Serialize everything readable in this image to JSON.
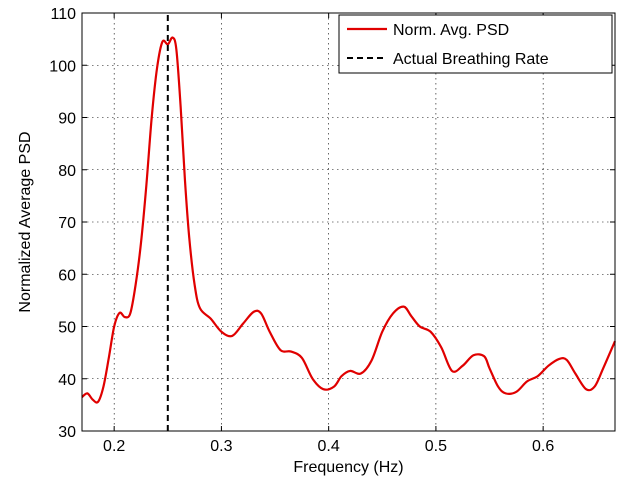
{
  "chart_data": {
    "type": "line",
    "title": "",
    "xlabel": "Frequency (Hz)",
    "ylabel": "Normalized Average PSD",
    "xlim": [
      0.17,
      0.667
    ],
    "ylim": [
      30,
      110
    ],
    "grid": true,
    "legend_position": "top-right",
    "xticks": [
      0.2,
      0.3,
      0.4,
      0.5,
      0.6
    ],
    "xtick_labels": [
      "0.2",
      "0.3",
      "0.4",
      "0.5",
      "0.6"
    ],
    "yticks": [
      30,
      40,
      50,
      60,
      70,
      80,
      90,
      100,
      110
    ],
    "ytick_labels": [
      "30",
      "40",
      "50",
      "60",
      "70",
      "80",
      "90",
      "100",
      "110"
    ],
    "series": [
      {
        "name": "Norm. Avg. PSD",
        "color": "#e00000",
        "style": "solid",
        "x": [
          0.17,
          0.175,
          0.18,
          0.185,
          0.19,
          0.195,
          0.2,
          0.205,
          0.21,
          0.215,
          0.22,
          0.225,
          0.23,
          0.235,
          0.24,
          0.245,
          0.25,
          0.2545,
          0.258,
          0.262,
          0.266,
          0.27,
          0.275,
          0.28,
          0.29,
          0.3,
          0.31,
          0.32,
          0.33,
          0.337,
          0.345,
          0.355,
          0.365,
          0.375,
          0.385,
          0.395,
          0.405,
          0.412,
          0.42,
          0.43,
          0.44,
          0.45,
          0.46,
          0.47,
          0.477,
          0.485,
          0.495,
          0.505,
          0.515,
          0.525,
          0.535,
          0.545,
          0.55,
          0.558,
          0.565,
          0.575,
          0.585,
          0.595,
          0.605,
          0.615,
          0.622,
          0.63,
          0.64,
          0.648,
          0.656,
          0.667
        ],
        "y": [
          36.5,
          37.2,
          36.0,
          35.6,
          38.5,
          44.0,
          50.0,
          52.6,
          51.8,
          52.5,
          58.0,
          66.0,
          77.0,
          90.0,
          99.5,
          104.5,
          104.0,
          105.3,
          103.0,
          92.0,
          78.0,
          67.0,
          58.0,
          53.5,
          51.5,
          49.0,
          48.2,
          50.5,
          52.8,
          52.5,
          49.0,
          45.5,
          45.2,
          44.0,
          40.0,
          38.0,
          38.5,
          40.5,
          41.5,
          41.0,
          43.5,
          49.0,
          52.5,
          53.8,
          52.0,
          50.0,
          49.0,
          46.0,
          41.5,
          42.5,
          44.5,
          44.3,
          42.0,
          38.5,
          37.2,
          37.5,
          39.5,
          40.5,
          42.5,
          43.8,
          43.6,
          41.0,
          38.0,
          38.5,
          42.0,
          47.2
        ]
      },
      {
        "name": "Actual Breathing Rate",
        "color": "#000000",
        "style": "dashed",
        "x": [
          0.25,
          0.25
        ],
        "y": [
          30,
          110
        ]
      }
    ]
  }
}
